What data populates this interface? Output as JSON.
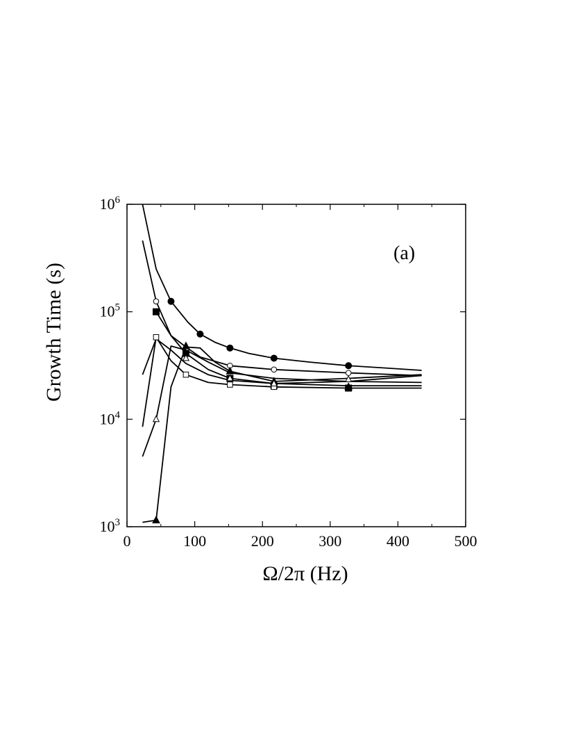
{
  "chart_data": {
    "type": "line",
    "panel_label": "(a)",
    "xlabel": "Ω/2π (Hz)",
    "ylabel": "Growth Time (s)",
    "xlim": [
      0,
      500
    ],
    "ylim": [
      1000,
      1000000
    ],
    "yscale": "log",
    "xticks": [
      0,
      100,
      200,
      300,
      400,
      500
    ],
    "yticks": [
      {
        "value": 1000,
        "mantissa": "10",
        "exponent": "3"
      },
      {
        "value": 10000,
        "mantissa": "10",
        "exponent": "4"
      },
      {
        "value": 100000,
        "mantissa": "10",
        "exponent": "5"
      },
      {
        "value": 1000000,
        "mantissa": "10",
        "exponent": "6"
      }
    ],
    "grid": false,
    "legend": "none",
    "series": [
      {
        "marker": "filled-circle",
        "curve": [
          [
            23,
            1000000
          ],
          [
            43,
            250000
          ],
          [
            65,
            125000
          ],
          [
            90,
            80000
          ],
          [
            108,
            62000
          ],
          [
            130,
            52000
          ],
          [
            152,
            46000
          ],
          [
            180,
            41000
          ],
          [
            217,
            37000
          ],
          [
            270,
            34000
          ],
          [
            327,
            31500
          ],
          [
            380,
            30000
          ],
          [
            435,
            28500
          ]
        ],
        "points": [
          [
            65,
            125000
          ],
          [
            108,
            62000
          ],
          [
            152,
            46000
          ],
          [
            217,
            37000
          ],
          [
            327,
            31500
          ]
        ]
      },
      {
        "marker": "open-circle",
        "curve": [
          [
            23,
            460000
          ],
          [
            43,
            125000
          ],
          [
            65,
            60000
          ],
          [
            87,
            47000
          ],
          [
            108,
            38000
          ],
          [
            152,
            31500
          ],
          [
            217,
            29000
          ],
          [
            327,
            27000
          ],
          [
            435,
            25500
          ]
        ],
        "points": [
          [
            43,
            125000
          ],
          [
            152,
            31500
          ],
          [
            217,
            29000
          ],
          [
            327,
            27000
          ]
        ]
      },
      {
        "marker": "filled-square",
        "curve": [
          [
            43,
            100000
          ],
          [
            65,
            60000
          ],
          [
            87,
            41000
          ],
          [
            120,
            29000
          ],
          [
            152,
            24000
          ],
          [
            217,
            21500
          ],
          [
            327,
            20500
          ],
          [
            435,
            20500
          ]
        ],
        "points": [
          [
            43,
            100000
          ],
          [
            87,
            41000
          ],
          [
            152,
            24000
          ],
          [
            217,
            20500
          ],
          [
            327,
            19500
          ]
        ]
      },
      {
        "marker": "open-square",
        "curve": [
          [
            23,
            8500
          ],
          [
            43,
            58000
          ],
          [
            65,
            35000
          ],
          [
            87,
            26000
          ],
          [
            120,
            22000
          ],
          [
            152,
            21000
          ],
          [
            217,
            20000
          ],
          [
            327,
            19500
          ],
          [
            435,
            19500
          ]
        ],
        "points": [
          [
            43,
            58000
          ],
          [
            87,
            26000
          ],
          [
            152,
            21000
          ],
          [
            217,
            20000
          ]
        ]
      },
      {
        "marker": "filled-triangle",
        "curve": [
          [
            23,
            1100
          ],
          [
            43,
            1150
          ],
          [
            65,
            20000
          ],
          [
            87,
            47000
          ],
          [
            108,
            46000
          ],
          [
            130,
            34000
          ],
          [
            152,
            28000
          ],
          [
            217,
            22500
          ],
          [
            327,
            24000
          ],
          [
            435,
            26000
          ]
        ],
        "points": [
          [
            43,
            1150
          ],
          [
            87,
            48000
          ],
          [
            152,
            28000
          ],
          [
            217,
            22500
          ],
          [
            327,
            20000
          ]
        ]
      },
      {
        "marker": "open-triangle",
        "curve": [
          [
            23,
            4500
          ],
          [
            43,
            10000
          ],
          [
            65,
            48000
          ],
          [
            87,
            44000
          ],
          [
            120,
            34000
          ],
          [
            152,
            27000
          ],
          [
            217,
            24000
          ],
          [
            327,
            22500
          ],
          [
            435,
            22000
          ]
        ],
        "points": [
          [
            43,
            10000
          ],
          [
            87,
            37000
          ],
          [
            152,
            24000
          ],
          [
            217,
            21500
          ],
          [
            327,
            23500
          ]
        ]
      },
      {
        "marker": "none",
        "curve": [
          [
            23,
            26000
          ],
          [
            43,
            56000
          ],
          [
            65,
            44000
          ],
          [
            87,
            33000
          ],
          [
            120,
            26000
          ],
          [
            152,
            23000
          ],
          [
            217,
            21500
          ],
          [
            327,
            22500
          ],
          [
            435,
            25500
          ]
        ],
        "points": []
      }
    ]
  }
}
